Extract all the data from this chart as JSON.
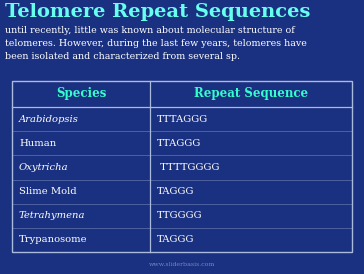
{
  "title": "Telomere Repeat Sequences",
  "description": "until recently, little was known about molecular structure of\ntelomeres. However, during the last few years, telomeres have\nbeen isolated and characterized from several sp.",
  "bg_color": "#1a3080",
  "title_color": "#66ffee",
  "desc_color": "#ffffff",
  "table_header": [
    "Species",
    "Repeat Sequence"
  ],
  "table_header_color": "#33ffcc",
  "table_rows": [
    [
      "Arabidopsis",
      "TTTAGGG"
    ],
    [
      "Human",
      "TTAGGG"
    ],
    [
      "Oxytricha",
      " TTTTGGGG"
    ],
    [
      "Slime Mold",
      "TAGGG"
    ],
    [
      "Tetrahymena",
      "TTGGGG"
    ],
    [
      "Trypanosome",
      "TAGGG"
    ]
  ],
  "italic_species": [
    "Arabidopsis",
    "Oxytricha",
    "Tetrahymena"
  ],
  "table_bg": "#1a3080",
  "table_border_color": "#aabbdd",
  "cell_text_color": "#ffffff",
  "footer_text": "www.sliderbasis.com",
  "footer_color": "#8899cc"
}
